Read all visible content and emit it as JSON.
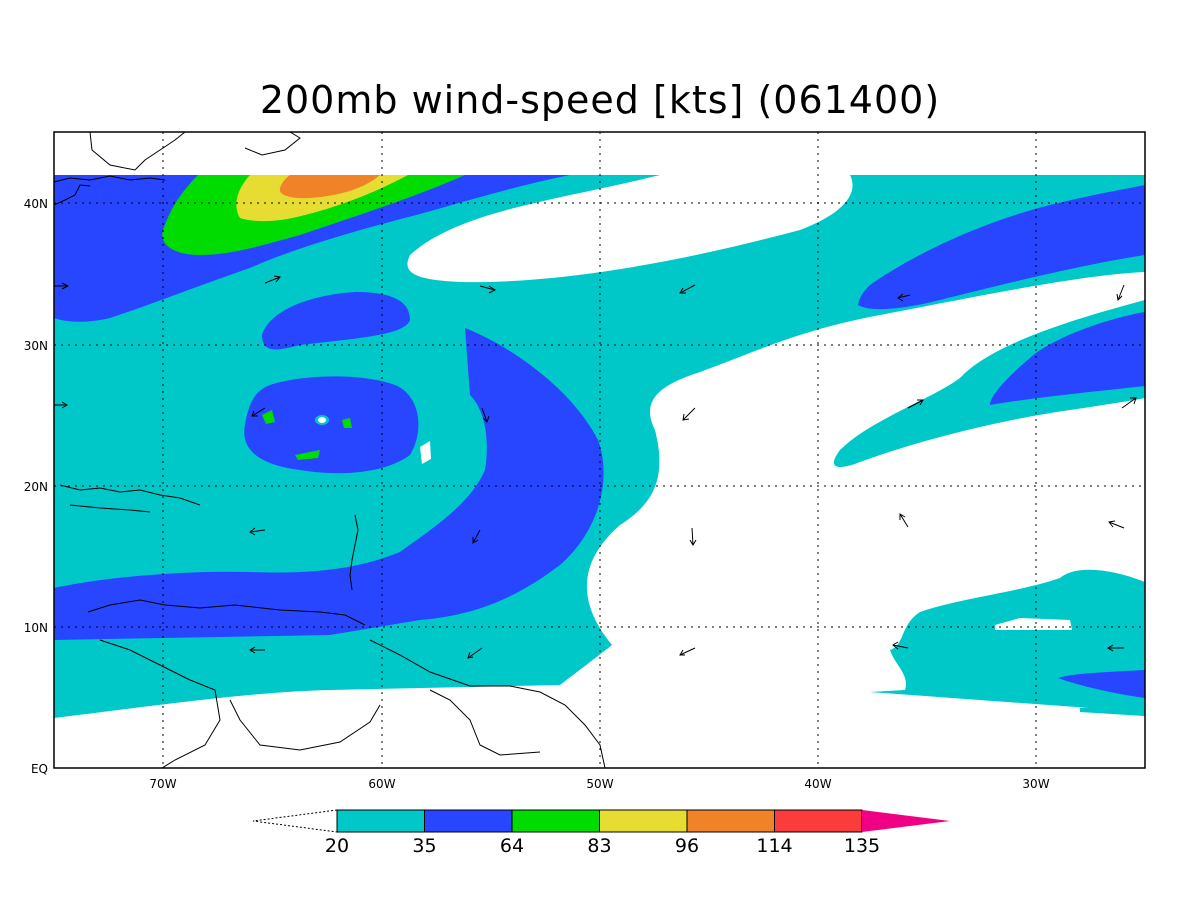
{
  "title": "200mb wind-speed [kts] (061400)",
  "lat_labels": [
    "40N",
    "30N",
    "20N",
    "10N",
    "EQ"
  ],
  "lon_labels": [
    "70W",
    "60W",
    "50W",
    "40W",
    "30W"
  ],
  "colorbar": {
    "levels": [
      "20",
      "35",
      "64",
      "83",
      "96",
      "114",
      "135"
    ],
    "colors": [
      "#00c8c8",
      "#2846ff",
      "#00dc00",
      "#e6dc32",
      "#f08228",
      "#fa3c3c",
      "#f00082"
    ]
  }
}
